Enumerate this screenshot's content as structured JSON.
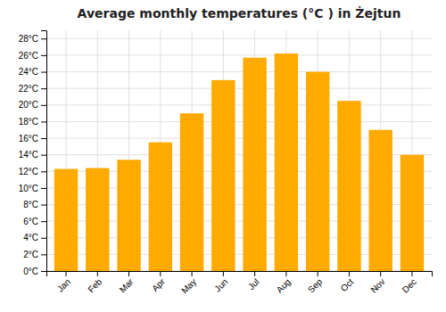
{
  "chart_data": {
    "type": "bar",
    "title": "Average monthly temperatures (°C ) in Żejtun",
    "categories": [
      "Jan",
      "Feb",
      "Mar",
      "Apr",
      "May",
      "Jun",
      "Jul",
      "Aug",
      "Sep",
      "Oct",
      "Nov",
      "Dec"
    ],
    "values": [
      12.3,
      12.4,
      13.4,
      15.5,
      19.0,
      23.0,
      25.7,
      26.2,
      24.0,
      20.5,
      17.0,
      14.0
    ],
    "color": "#FFAA00",
    "ylim": [
      0,
      29
    ],
    "yticks": [
      {
        "value": 0,
        "label": "0°C"
      },
      {
        "value": 2,
        "label": "2°C"
      },
      {
        "value": 4,
        "label": "4°C"
      },
      {
        "value": 6,
        "label": "6°C"
      },
      {
        "value": 8,
        "label": "8°C"
      },
      {
        "value": 10,
        "label": "10°C"
      },
      {
        "value": 12,
        "label": "12°C"
      },
      {
        "value": 14,
        "label": "14°C"
      },
      {
        "value": 16,
        "label": "16°C"
      },
      {
        "value": 18,
        "label": "18°C"
      },
      {
        "value": 20,
        "label": "20°C"
      },
      {
        "value": 22,
        "label": "22°C"
      },
      {
        "value": 24,
        "label": "24°C"
      },
      {
        "value": 26,
        "label": "26°C"
      },
      {
        "value": 28,
        "label": "28°C"
      }
    ],
    "grid": true
  }
}
